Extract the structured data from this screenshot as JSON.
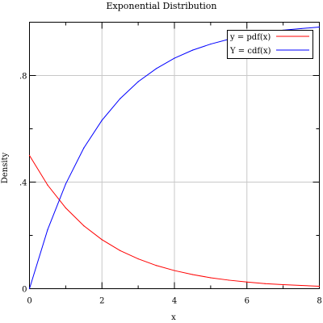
{
  "chart_data": {
    "type": "line",
    "title": "Exponential Distribution",
    "xlabel": "x",
    "ylabel": "Density",
    "xlim": [
      0,
      8
    ],
    "ylim": [
      0,
      1.0
    ],
    "x_ticks": [
      0,
      2,
      4,
      6,
      8
    ],
    "x_tick_labels": [
      "0",
      "2",
      "4",
      "6",
      "8"
    ],
    "y_ticks": [
      0,
      0.4,
      0.8
    ],
    "y_tick_labels": [
      "0",
      ".4",
      ".8"
    ],
    "grid": true,
    "legend_position": "top-right",
    "series": [
      {
        "name": "y = pdf(x)",
        "color": "#ff0000",
        "x": [
          0,
          0.5,
          1,
          1.5,
          2,
          2.5,
          3,
          3.5,
          4,
          4.5,
          5,
          5.5,
          6,
          6.5,
          7,
          7.5,
          8
        ],
        "values": [
          0.5,
          0.389,
          0.303,
          0.236,
          0.184,
          0.143,
          0.112,
          0.087,
          0.068,
          0.053,
          0.041,
          0.032,
          0.025,
          0.019,
          0.015,
          0.012,
          0.009
        ]
      },
      {
        "name": "Y = cdf(x)",
        "color": "#0000ff",
        "x": [
          0,
          0.5,
          1,
          1.5,
          2,
          2.5,
          3,
          3.5,
          4,
          4.5,
          5,
          5.5,
          6,
          6.5,
          7,
          7.5,
          8
        ],
        "values": [
          0,
          0.221,
          0.393,
          0.528,
          0.632,
          0.713,
          0.777,
          0.826,
          0.865,
          0.895,
          0.918,
          0.936,
          0.95,
          0.961,
          0.97,
          0.976,
          0.982
        ]
      }
    ]
  }
}
